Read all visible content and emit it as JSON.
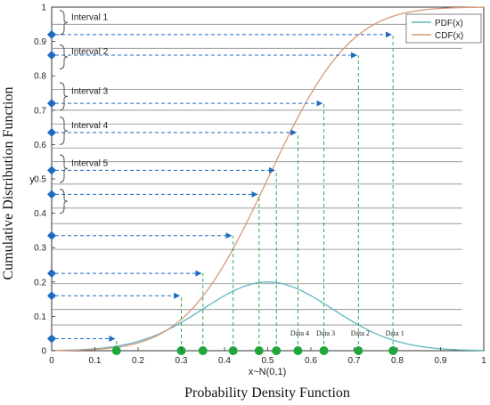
{
  "chart_data": {
    "type": "line",
    "title": "",
    "xlabel_outer": "Probability Density Function",
    "xlabel_inner": "x~N(0,1)",
    "ylabel_outer": "Cumulative Distribution Function",
    "ylabel_inner": "y",
    "xlim": [
      0,
      1
    ],
    "ylim": [
      0,
      1
    ],
    "xticks": [
      "0",
      "0.1",
      "0.2",
      "0.3",
      "0.4",
      "0.5",
      "0.6",
      "0.7",
      "0.8",
      "0.9",
      "1"
    ],
    "yticks": [
      "0",
      "0.1",
      "0.2",
      "0.3",
      "0.4",
      "0.5",
      "0.6",
      "0.7",
      "0.8",
      "0.9",
      "1"
    ],
    "legend_position": "top-right",
    "series": [
      {
        "name": "PDF(x)",
        "color": "#5fb7c0"
      },
      {
        "name": "CDF(x)",
        "color": "#d9987a"
      }
    ],
    "data_points_x": [
      0.15,
      0.3,
      0.35,
      0.42,
      0.48,
      0.52,
      0.57,
      0.63,
      0.71,
      0.79
    ],
    "cdf_points": [
      {
        "x": 0.15,
        "y": 0.035
      },
      {
        "x": 0.3,
        "y": 0.16
      },
      {
        "x": 0.35,
        "y": 0.225
      },
      {
        "x": 0.42,
        "y": 0.335
      },
      {
        "x": 0.48,
        "y": 0.455
      },
      {
        "x": 0.52,
        "y": 0.525
      },
      {
        "x": 0.57,
        "y": 0.635
      },
      {
        "x": 0.63,
        "y": 0.72
      },
      {
        "x": 0.71,
        "y": 0.86
      },
      {
        "x": 0.79,
        "y": 0.92
      }
    ],
    "interval_lines_y": [
      0.95,
      0.88,
      0.76,
      0.7,
      0.66,
      0.59,
      0.55,
      0.485,
      0.415,
      0.37,
      0.295,
      0.195,
      0.12,
      0.075
    ],
    "intervals": [
      {
        "label": "Interval 1",
        "y_top": 0.99,
        "y_bottom": 0.92
      },
      {
        "label": "Interval 2",
        "y_top": 0.89,
        "y_bottom": 0.82
      },
      {
        "label": "Interval 3",
        "y_top": 0.78,
        "y_bottom": 0.7
      },
      {
        "label": "Interval 4",
        "y_top": 0.68,
        "y_bottom": 0.6
      },
      {
        "label": "Interval 5",
        "y_top": 0.57,
        "y_bottom": 0.49
      },
      {
        "label": "",
        "y_top": 0.47,
        "y_bottom": 0.4
      }
    ],
    "data_labels": [
      {
        "text": "Data 4",
        "x": 0.57
      },
      {
        "text": "Data 3",
        "x": 0.63
      },
      {
        "text": "Data 2",
        "x": 0.71
      },
      {
        "text": "Data 1",
        "x": 0.79
      }
    ],
    "pdf_mean": 0.5,
    "pdf_sd": 0.15,
    "pdf_peak": 0.2,
    "colors": {
      "arrow": "#1f6bc1",
      "marker": "#1f6bc1",
      "guide": "#2ab24a",
      "dot": "#21a63c",
      "hline": "#8a8a8a",
      "pdf": "#5fb7c0",
      "cdf": "#d9987a"
    }
  }
}
